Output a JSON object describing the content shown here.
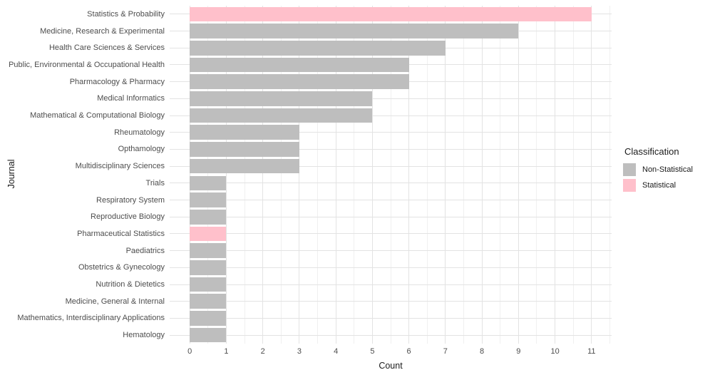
{
  "chart_data": {
    "type": "bar",
    "orientation": "horizontal",
    "title": "",
    "xlabel": "Count",
    "ylabel": "Journal",
    "xlim": [
      0,
      11
    ],
    "x_ticks": [
      0,
      1,
      2,
      3,
      4,
      5,
      6,
      7,
      8,
      9,
      10,
      11
    ],
    "grid": {
      "show": true,
      "major_color": "#E3E3E3",
      "minor_color": "#F0F0F0",
      "minor_step": 0.5
    },
    "legend": {
      "title": "Classification",
      "position": "right",
      "entries": [
        {
          "label": "Non-Statistical",
          "color": "#BEBEBE"
        },
        {
          "label": "Statistical",
          "color": "#FFC0CB"
        }
      ]
    },
    "colors": {
      "Non-Statistical": "#BEBEBE",
      "Statistical": "#FFC0CB"
    },
    "bars": [
      {
        "category": "Statistics & Probability",
        "value": 11,
        "classification": "Statistical"
      },
      {
        "category": "Medicine, Research & Experimental",
        "value": 9,
        "classification": "Non-Statistical"
      },
      {
        "category": "Health Care Sciences & Services",
        "value": 7,
        "classification": "Non-Statistical"
      },
      {
        "category": "Public, Environmental & Occupational Health",
        "value": 6,
        "classification": "Non-Statistical"
      },
      {
        "category": "Pharmacology & Pharmacy",
        "value": 6,
        "classification": "Non-Statistical"
      },
      {
        "category": "Medical Informatics",
        "value": 5,
        "classification": "Non-Statistical"
      },
      {
        "category": "Mathematical & Computational Biology",
        "value": 5,
        "classification": "Non-Statistical"
      },
      {
        "category": "Rheumatology",
        "value": 3,
        "classification": "Non-Statistical"
      },
      {
        "category": "Opthamology",
        "value": 3,
        "classification": "Non-Statistical"
      },
      {
        "category": "Multidisciplinary Sciences",
        "value": 3,
        "classification": "Non-Statistical"
      },
      {
        "category": "Trials",
        "value": 1,
        "classification": "Non-Statistical"
      },
      {
        "category": "Respiratory System",
        "value": 1,
        "classification": "Non-Statistical"
      },
      {
        "category": "Reproductive Biology",
        "value": 1,
        "classification": "Non-Statistical"
      },
      {
        "category": "Pharmaceutical Statistics",
        "value": 1,
        "classification": "Statistical"
      },
      {
        "category": "Paediatrics",
        "value": 1,
        "classification": "Non-Statistical"
      },
      {
        "category": "Obstetrics & Gynecology",
        "value": 1,
        "classification": "Non-Statistical"
      },
      {
        "category": "Nutrition & Dietetics",
        "value": 1,
        "classification": "Non-Statistical"
      },
      {
        "category": "Medicine, General & Internal",
        "value": 1,
        "classification": "Non-Statistical"
      },
      {
        "category": "Mathematics, Interdisciplinary Applications",
        "value": 1,
        "classification": "Non-Statistical"
      },
      {
        "category": "Hematology",
        "value": 1,
        "classification": "Non-Statistical"
      }
    ]
  }
}
